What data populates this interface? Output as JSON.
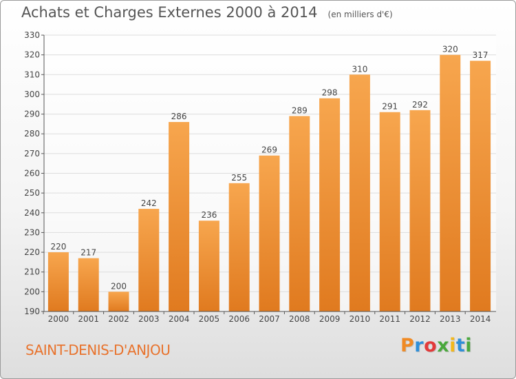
{
  "header": {
    "title": "Achats et Charges Externes 2000 à 2014",
    "subtitle": "(en milliers d'€)"
  },
  "footer": {
    "city": "SAINT-DENIS-D'ANJOU",
    "brand": "Proxiti"
  },
  "colors": {
    "bar_top": "#f7a64e",
    "bar_bottom": "#e07a1f",
    "city_text": "#e8732d",
    "grid": "#dddddd"
  },
  "chart_data": {
    "type": "bar",
    "categories": [
      "2000",
      "2001",
      "2002",
      "2003",
      "2004",
      "2005",
      "2006",
      "2007",
      "2008",
      "2009",
      "2010",
      "2011",
      "2012",
      "2013",
      "2014"
    ],
    "values": [
      220,
      217,
      200,
      242,
      286,
      236,
      255,
      269,
      289,
      298,
      310,
      291,
      292,
      320,
      317
    ],
    "title": "Achats et Charges Externes 2000 à 2014",
    "xlabel": "",
    "ylabel": "",
    "ylim": [
      190,
      330
    ],
    "yticks": [
      190,
      200,
      210,
      220,
      230,
      240,
      250,
      260,
      270,
      280,
      290,
      300,
      310,
      320,
      330
    ],
    "grid": true,
    "data_labels": true
  }
}
